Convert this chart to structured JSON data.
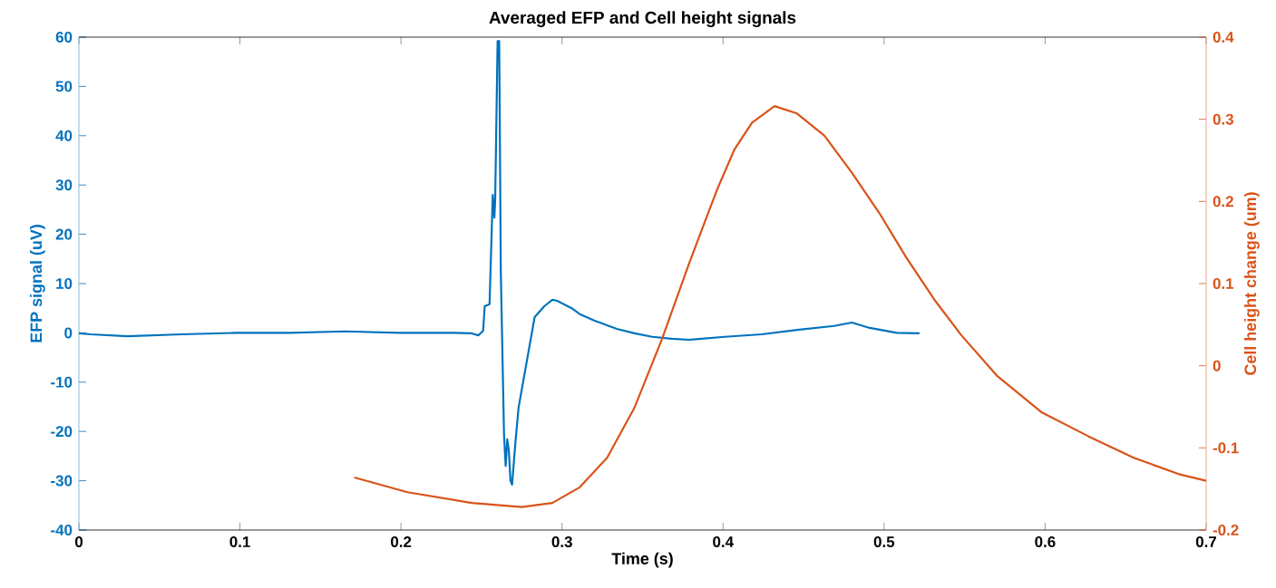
{
  "chart_data": {
    "type": "line",
    "title": "Averaged EFP and Cell height signals",
    "xlabel": "Time (s)",
    "ylabel": "EFP signal (uV)",
    "y2label": "Cell height change (um)",
    "xlim": [
      0,
      0.7
    ],
    "xticks": [
      0,
      0.1,
      0.2,
      0.3,
      0.4,
      0.5,
      0.6,
      0.7
    ],
    "ylim": [
      -40,
      60
    ],
    "yticks": [
      -40,
      -30,
      -20,
      -10,
      0,
      10,
      20,
      30,
      40,
      50,
      60
    ],
    "y2lim": [
      -0.2,
      0.4
    ],
    "y2ticks": [
      -0.2,
      -0.1,
      0,
      0.1,
      0.2,
      0.3,
      0.4
    ],
    "grid": false,
    "marker": "none",
    "line_style": "solid",
    "series": [
      {
        "color": "#0072bd",
        "x": [
          0,
          0.0073,
          0.03,
          0.064,
          0.097,
          0.131,
          0.165,
          0.199,
          0.233,
          0.244,
          0.248,
          0.251,
          0.252,
          0.255,
          0.257,
          0.258,
          0.2585,
          0.26,
          0.261,
          0.262,
          0.264,
          0.265,
          0.266,
          0.267,
          0.268,
          0.269,
          0.271,
          0.273,
          0.276,
          0.281,
          0.283,
          0.289,
          0.294,
          0.297,
          0.306,
          0.311,
          0.32,
          0.334,
          0.345,
          0.356,
          0.368,
          0.379,
          0.401,
          0.424,
          0.446,
          0.469,
          0.48,
          0.491,
          0.508,
          0.522
        ],
        "values": [
          -0.1,
          -0.3,
          -0.7,
          -0.3,
          0,
          0,
          0.3,
          0,
          0,
          -0.1,
          -0.5,
          0.4,
          5.4,
          5.8,
          28,
          23.4,
          27,
          59.2,
          59.2,
          12.4,
          -20.8,
          -27,
          -21.6,
          -24,
          -30,
          -30.8,
          -22.5,
          -15.2,
          -9.7,
          -0.5,
          3.2,
          5.4,
          6.7,
          6.5,
          5,
          3.8,
          2.5,
          0.8,
          -0.1,
          -0.8,
          -1.2,
          -1.4,
          -0.8,
          -0.3,
          0.6,
          1.4,
          2.1,
          1,
          0,
          -0.1
        ]
      },
      {
        "color": "#d95319",
        "axis": "y2",
        "x": [
          0.171,
          0.204,
          0.244,
          0.275,
          0.294,
          0.311,
          0.328,
          0.345,
          0.362,
          0.379,
          0.396,
          0.407,
          0.418,
          0.432,
          0.446,
          0.463,
          0.48,
          0.497,
          0.514,
          0.531,
          0.548,
          0.57,
          0.598,
          0.627,
          0.655,
          0.683,
          0.7
        ],
        "values": [
          -0.136,
          -0.154,
          -0.167,
          -0.172,
          -0.167,
          -0.148,
          -0.112,
          -0.051,
          0.032,
          0.125,
          0.213,
          0.263,
          0.296,
          0.316,
          0.307,
          0.28,
          0.235,
          0.186,
          0.131,
          0.081,
          0.037,
          -0.012,
          -0.057,
          -0.086,
          -0.112,
          -0.132,
          -0.14
        ]
      }
    ]
  }
}
